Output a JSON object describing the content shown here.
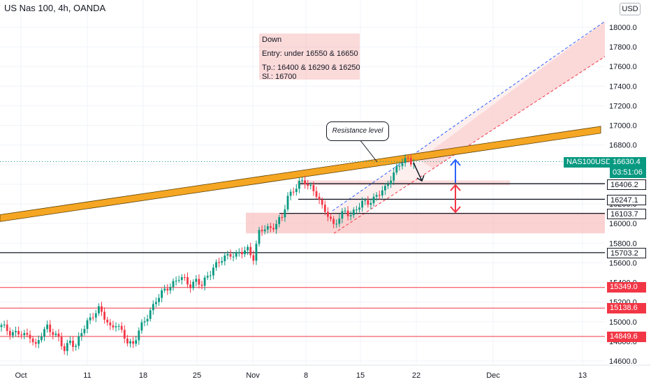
{
  "header": {
    "title": "US Nas 100, 4h, OANDA",
    "currency": "USD"
  },
  "note": {
    "line1": "Down",
    "line2": "Entry: under 16550 & 16650",
    "line3": "Tp.: 16400 & 16290 & 16250",
    "line4": "Sl.: 16700"
  },
  "callout": {
    "text": "Resistance level"
  },
  "tags": {
    "symbol": "NAS100USD",
    "last_price": "16630.4",
    "countdown": "03:51:06",
    "level_16406": "16406.2",
    "level_16247": "16247.1",
    "level_16103": "16103.7",
    "level_15703": "15703.2",
    "level_15349": "15349.0",
    "level_15138": "15138.6",
    "level_14849": "14849.6"
  },
  "colors": {
    "bull": "#089981",
    "bear": "#f23645",
    "trendline": "#f5a623",
    "zone": "#f8c3c3",
    "channel": "#fbd0d0"
  },
  "chart_data": {
    "type": "candlestick",
    "title": "US Nas 100, 4h, OANDA",
    "y_axis": {
      "ticks": [
        14600,
        14800,
        15000,
        15200,
        15400,
        15600,
        15800,
        16000,
        16200,
        16400,
        16600,
        16800,
        17000,
        17200,
        17400,
        17600,
        17800,
        18000
      ],
      "tick_labels": [
        "14600.0",
        "14800.0",
        "15000.0",
        "15200.0",
        "15400.0",
        "15600.0",
        "15800.0",
        "16000.0",
        "16200.0",
        "16400.0",
        "16600.0",
        "16800.0",
        "17000.0",
        "17200.0",
        "17400.0",
        "17600.0",
        "17800.0",
        "18000.0"
      ],
      "range": [
        14510,
        18200
      ]
    },
    "x_axis": {
      "labels": [
        "Oct",
        "11",
        "18",
        "25",
        "Nov",
        "8",
        "15",
        "22",
        "Dec",
        "13"
      ]
    },
    "horizontal_levels": [
      16406.2,
      16247.1,
      16103.7,
      15703.2,
      15349.0,
      15138.6,
      14849.6
    ],
    "last_price": 16630.4,
    "close_path": [
      [
        0,
        14950
      ],
      [
        3,
        14900
      ],
      [
        6,
        14880
      ],
      [
        8,
        14850
      ],
      [
        10,
        14870
      ],
      [
        12,
        14750
      ],
      [
        14,
        14860
      ],
      [
        16,
        14950
      ],
      [
        18,
        14900
      ],
      [
        20,
        14820
      ],
      [
        22,
        14700
      ],
      [
        24,
        14820
      ],
      [
        26,
        14750
      ],
      [
        28,
        14880
      ],
      [
        30,
        15000
      ],
      [
        32,
        15080
      ],
      [
        34,
        15120
      ],
      [
        36,
        15040
      ],
      [
        38,
        14950
      ],
      [
        40,
        14980
      ],
      [
        42,
        14880
      ],
      [
        44,
        14800
      ],
      [
        46,
        14780
      ],
      [
        48,
        14900
      ],
      [
        50,
        15000
      ],
      [
        52,
        15120
      ],
      [
        54,
        15220
      ],
      [
        56,
        15280
      ],
      [
        58,
        15350
      ],
      [
        60,
        15400
      ],
      [
        62,
        15440
      ],
      [
        64,
        15420
      ],
      [
        66,
        15380
      ],
      [
        68,
        15420
      ],
      [
        70,
        15360
      ],
      [
        72,
        15470
      ],
      [
        74,
        15560
      ],
      [
        76,
        15600
      ],
      [
        78,
        15650
      ],
      [
        80,
        15700
      ],
      [
        82,
        15680
      ],
      [
        84,
        15700
      ],
      [
        86,
        15740
      ],
      [
        88,
        15660
      ],
      [
        90,
        15900
      ],
      [
        92,
        15950
      ],
      [
        94,
        15960
      ],
      [
        96,
        16000
      ],
      [
        98,
        16050
      ],
      [
        100,
        16280
      ],
      [
        102,
        16350
      ],
      [
        104,
        16400
      ],
      [
        106,
        16420
      ],
      [
        108,
        16380
      ],
      [
        110,
        16300
      ],
      [
        112,
        16150
      ],
      [
        114,
        16100
      ],
      [
        116,
        15990
      ],
      [
        118,
        16050
      ],
      [
        120,
        16120
      ],
      [
        122,
        16100
      ],
      [
        124,
        16150
      ],
      [
        126,
        16200
      ],
      [
        128,
        16220
      ],
      [
        130,
        16260
      ],
      [
        132,
        16300
      ],
      [
        134,
        16350
      ],
      [
        136,
        16480
      ],
      [
        138,
        16560
      ],
      [
        140,
        16620
      ],
      [
        142,
        16660
      ],
      [
        144,
        16630
      ]
    ]
  }
}
